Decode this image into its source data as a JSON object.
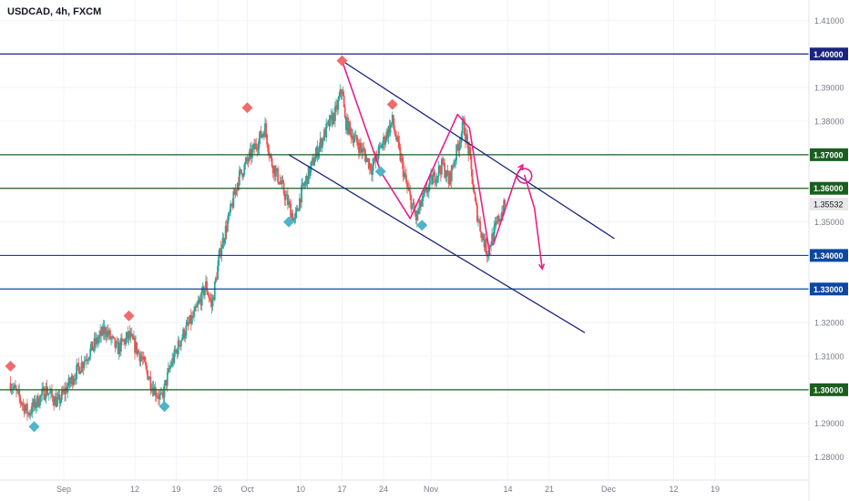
{
  "header": {
    "symbol_label": "USDCAD, 4h, FXCM"
  },
  "colors": {
    "up": "#26a69a",
    "down": "#ef5350",
    "channel": "#1a237e",
    "support_blue": "#0d47a1",
    "support_green": "#1b5e20",
    "pattern": "#e91e8c",
    "marker_high": "#ef6c6c",
    "marker_low": "#4fb3c9",
    "price_badge_bg": "#e8e8e8"
  },
  "chart_data": {
    "type": "candlestick",
    "title": "USDCAD, 4h, FXCM",
    "y_axis": {
      "ylim": [
        1.275,
        1.415
      ],
      "ticks": [
        "1.28000",
        "1.29000",
        "1.30000",
        "1.31000",
        "1.32000",
        "1.33000",
        "1.34000",
        "1.35000",
        "1.36000",
        "1.37000",
        "1.38000",
        "1.39000",
        "1.40000",
        "1.41000"
      ]
    },
    "x_axis": {
      "labels": [
        "Sep",
        "12",
        "19",
        "26",
        "Oct",
        "10",
        "17",
        "24",
        "Nov",
        "14",
        "21",
        "Dec",
        "12",
        "19"
      ],
      "label_days": [
        -1,
        11,
        18,
        25,
        30,
        39,
        46,
        53,
        61,
        74,
        81,
        91,
        102,
        109
      ]
    },
    "last_price": {
      "label": "1.35532",
      "value": 1.35532
    },
    "horizontal_levels": [
      {
        "label": "1.40000",
        "value": 1.4,
        "color": "channel"
      },
      {
        "label": "1.37000",
        "value": 1.37,
        "color": "support_green"
      },
      {
        "label": "1.36000",
        "value": 1.36,
        "color": "support_green"
      },
      {
        "label": "1.34000",
        "value": 1.34,
        "color": "support_blue"
      },
      {
        "label": "1.33000",
        "value": 1.33,
        "color": "support_blue"
      },
      {
        "label": "1.30000",
        "value": 1.3,
        "color": "support_green"
      }
    ],
    "close_path": [
      [
        -10,
        1.302
      ],
      [
        -7,
        1.293
      ],
      [
        -4,
        1.3
      ],
      [
        -2,
        1.296
      ],
      [
        1,
        1.305
      ],
      [
        4,
        1.313
      ],
      [
        6,
        1.318
      ],
      [
        8,
        1.312
      ],
      [
        10,
        1.316
      ],
      [
        12,
        1.31
      ],
      [
        14,
        1.301
      ],
      [
        15.5,
        1.297
      ],
      [
        17,
        1.307
      ],
      [
        19,
        1.316
      ],
      [
        21,
        1.322
      ],
      [
        23,
        1.331
      ],
      [
        24,
        1.325
      ],
      [
        25.5,
        1.342
      ],
      [
        27,
        1.352
      ],
      [
        28.5,
        1.363
      ],
      [
        30,
        1.368
      ],
      [
        31.5,
        1.373
      ],
      [
        33,
        1.378
      ],
      [
        34,
        1.368
      ],
      [
        35.5,
        1.362
      ],
      [
        37,
        1.355
      ],
      [
        38,
        1.35
      ],
      [
        39,
        1.358
      ],
      [
        40.5,
        1.365
      ],
      [
        42,
        1.372
      ],
      [
        43.5,
        1.378
      ],
      [
        45,
        1.383
      ],
      [
        46,
        1.39
      ],
      [
        46.5,
        1.38
      ],
      [
        48,
        1.375
      ],
      [
        49.5,
        1.371
      ],
      [
        51,
        1.366
      ],
      [
        52,
        1.37
      ],
      [
        53.5,
        1.376
      ],
      [
        54.5,
        1.38
      ],
      [
        55.5,
        1.372
      ],
      [
        57,
        1.36
      ],
      [
        58.5,
        1.351
      ],
      [
        59.5,
        1.356
      ],
      [
        61,
        1.362
      ],
      [
        63,
        1.367
      ],
      [
        64,
        1.362
      ],
      [
        65.5,
        1.372
      ],
      [
        66.5,
        1.379
      ],
      [
        67.5,
        1.37
      ],
      [
        68.5,
        1.355
      ],
      [
        69.5,
        1.347
      ],
      [
        70.5,
        1.341
      ],
      [
        71.5,
        1.346
      ],
      [
        72.5,
        1.351
      ],
      [
        73.5,
        1.355
      ]
    ],
    "pivot_markers": [
      {
        "type": "high",
        "day": -10,
        "value": 1.307
      },
      {
        "type": "low",
        "day": -6,
        "value": 1.289
      },
      {
        "type": "high",
        "day": 10,
        "value": 1.322
      },
      {
        "type": "low",
        "day": 16,
        "value": 1.295
      },
      {
        "type": "high",
        "day": 30,
        "value": 1.384
      },
      {
        "type": "low",
        "day": 37,
        "value": 1.35
      },
      {
        "type": "high",
        "day": 46,
        "value": 1.398
      },
      {
        "type": "low",
        "day": 52.5,
        "value": 1.365
      },
      {
        "type": "high",
        "day": 54.5,
        "value": 1.385
      },
      {
        "type": "low",
        "day": 59.5,
        "value": 1.349
      }
    ],
    "channel_lines": [
      {
        "from": [
          46,
          1.398
        ],
        "to": [
          92,
          1.345
        ]
      },
      {
        "from": [
          37,
          1.37
        ],
        "to": [
          87,
          1.317
        ]
      }
    ],
    "pattern_paths": [
      [
        [
          46,
          1.398
        ],
        [
          52.5,
          1.365
        ],
        [
          57.5,
          1.351
        ],
        [
          65.5,
          1.382
        ],
        [
          67.5,
          1.378
        ],
        [
          71,
          1.34
        ]
      ],
      [
        [
          71.5,
          1.343
        ],
        [
          75.5,
          1.364
        ],
        [
          76.5,
          1.367
        ]
      ],
      [
        [
          76.8,
          1.364
        ],
        [
          78.5,
          1.354
        ],
        [
          79.8,
          1.336
        ]
      ]
    ],
    "target_circle": {
      "day": 76.8,
      "value": 1.3637
    }
  }
}
